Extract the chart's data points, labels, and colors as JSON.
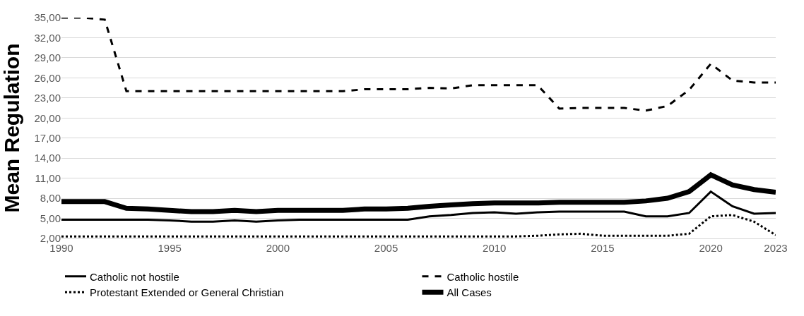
{
  "chart_data": {
    "type": "line",
    "ylabel": "Mean Regulation",
    "x": [
      1990,
      1991,
      1992,
      1993,
      1994,
      1995,
      1996,
      1997,
      1998,
      1999,
      2000,
      2001,
      2002,
      2003,
      2004,
      2005,
      2006,
      2007,
      2008,
      2009,
      2010,
      2011,
      2012,
      2013,
      2014,
      2015,
      2016,
      2017,
      2018,
      2019,
      2020,
      2021,
      2022,
      2023
    ],
    "series": [
      {
        "name": "Catholic not hostile",
        "color": "#000000",
        "line_style": "solid",
        "values": [
          4.8,
          4.8,
          4.8,
          4.8,
          4.8,
          4.7,
          4.5,
          4.5,
          4.7,
          4.5,
          4.7,
          4.8,
          4.8,
          4.8,
          4.8,
          4.8,
          4.8,
          5.3,
          5.5,
          5.8,
          5.9,
          5.7,
          5.9,
          6.0,
          6.0,
          6.0,
          6.0,
          5.3,
          5.3,
          5.8,
          9.0,
          6.8,
          5.7,
          5.8
        ]
      },
      {
        "name": "Catholic hostile",
        "color": "#000000",
        "line_style": "dashed",
        "values": [
          35.0,
          35.0,
          34.7,
          24.0,
          24.0,
          24.0,
          24.0,
          24.0,
          24.0,
          24.0,
          24.0,
          24.0,
          24.0,
          24.0,
          24.3,
          24.3,
          24.3,
          24.5,
          24.4,
          24.9,
          24.9,
          24.9,
          24.9,
          21.4,
          21.5,
          21.5,
          21.5,
          21.1,
          21.8,
          24.2,
          28.1,
          25.6,
          25.3,
          25.3
        ]
      },
      {
        "name": "Protestant Extended or General Christian",
        "color": "#000000",
        "line_style": "dotted",
        "values": [
          2.3,
          2.3,
          2.3,
          2.3,
          2.3,
          2.3,
          2.3,
          2.3,
          2.3,
          2.3,
          2.3,
          2.3,
          2.3,
          2.3,
          2.3,
          2.3,
          2.3,
          2.3,
          2.3,
          2.3,
          2.3,
          2.3,
          2.4,
          2.6,
          2.7,
          2.4,
          2.4,
          2.4,
          2.4,
          2.7,
          5.3,
          5.5,
          4.5,
          2.5
        ]
      },
      {
        "name": "All Cases",
        "color": "#000000",
        "line_style": "solid",
        "values": [
          7.5,
          7.5,
          7.5,
          6.5,
          6.4,
          6.2,
          6.0,
          6.0,
          6.2,
          6.0,
          6.2,
          6.2,
          6.2,
          6.2,
          6.4,
          6.4,
          6.5,
          6.8,
          7.0,
          7.2,
          7.3,
          7.3,
          7.3,
          7.4,
          7.4,
          7.4,
          7.4,
          7.6,
          8.0,
          9.0,
          11.5,
          10.0,
          9.3,
          8.9
        ]
      }
    ],
    "xlim": [
      1990,
      2023
    ],
    "xticks": [
      1990,
      1995,
      2000,
      2005,
      2010,
      2015,
      2020,
      2023
    ],
    "ylim": [
      2,
      35
    ],
    "yticks": [
      {
        "value": 2,
        "label": "2,00"
      },
      {
        "value": 5,
        "label": "5,00"
      },
      {
        "value": 8,
        "label": "8,00"
      },
      {
        "value": 11,
        "label": "11,00"
      },
      {
        "value": 14,
        "label": "14,00"
      },
      {
        "value": 17,
        "label": "17,00"
      },
      {
        "value": 20,
        "label": "20,00"
      },
      {
        "value": 23,
        "label": "23,00"
      },
      {
        "value": 26,
        "label": "26,00"
      },
      {
        "value": 29,
        "label": "29,00"
      },
      {
        "value": 32,
        "label": "32,00"
      },
      {
        "value": 35,
        "label": "35,00"
      }
    ],
    "grid": "y",
    "legend": "bottom",
    "marker": "none"
  }
}
